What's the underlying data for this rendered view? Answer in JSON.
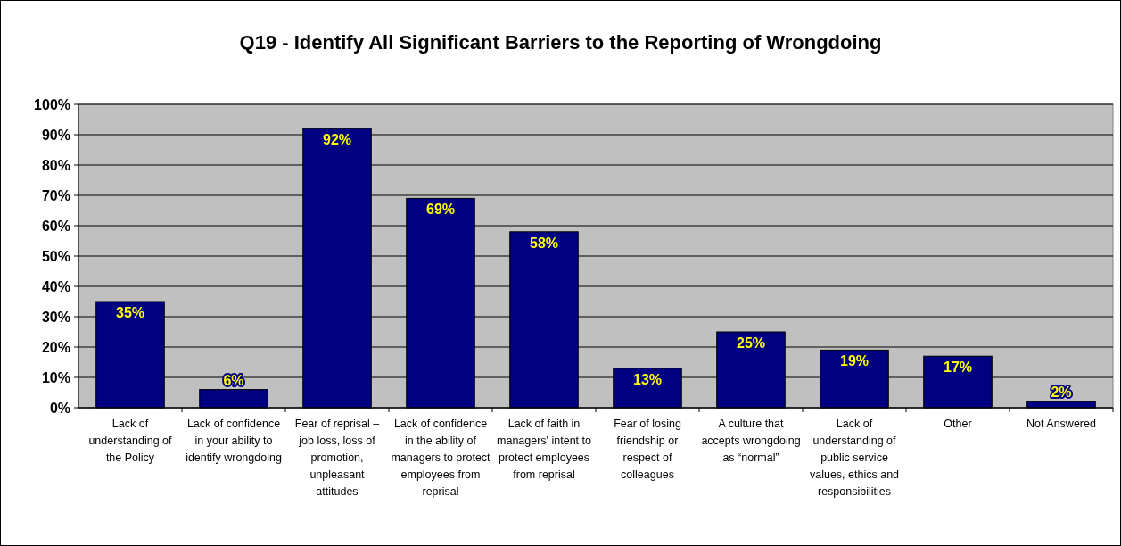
{
  "chart_data": {
    "type": "bar",
    "title": "Q19 - Identify All Significant Barriers to the Reporting of Wrongdoing",
    "categories": [
      "Lack of understanding of the Policy",
      "Lack of confidence in your ability to identify wrongdoing",
      "Fear of reprisal – job loss, loss of promotion, unpleasant attitudes",
      "Lack of confidence in the ability of managers to protect employees from reprisal",
      "Lack of faith in managers' intent to protect employees from reprisal",
      "Fear of losing friendship or respect of colleagues",
      "A culture that accepts wrongdoing as “normal”",
      "Lack of understanding of public service values, ethics and responsibilities",
      "Other",
      "Not Answered"
    ],
    "values": [
      35,
      6,
      92,
      69,
      58,
      13,
      25,
      19,
      17,
      2
    ],
    "value_labels": [
      "35%",
      "6%",
      "92%",
      "69%",
      "58%",
      "13%",
      "25%",
      "19%",
      "17%",
      "2%"
    ],
    "color": "#000080",
    "ylim": [
      0,
      100
    ],
    "yticks": [
      {
        "value": 0,
        "label": "0%"
      },
      {
        "value": 10,
        "label": "10%"
      },
      {
        "value": 20,
        "label": "20%"
      },
      {
        "value": 30,
        "label": "30%"
      },
      {
        "value": 40,
        "label": "40%"
      },
      {
        "value": 50,
        "label": "50%"
      },
      {
        "value": 60,
        "label": "60%"
      },
      {
        "value": 70,
        "label": "70%"
      },
      {
        "value": 80,
        "label": "80%"
      },
      {
        "value": 90,
        "label": "90%"
      },
      {
        "value": 100,
        "label": "100%"
      }
    ],
    "grid": "y"
  }
}
